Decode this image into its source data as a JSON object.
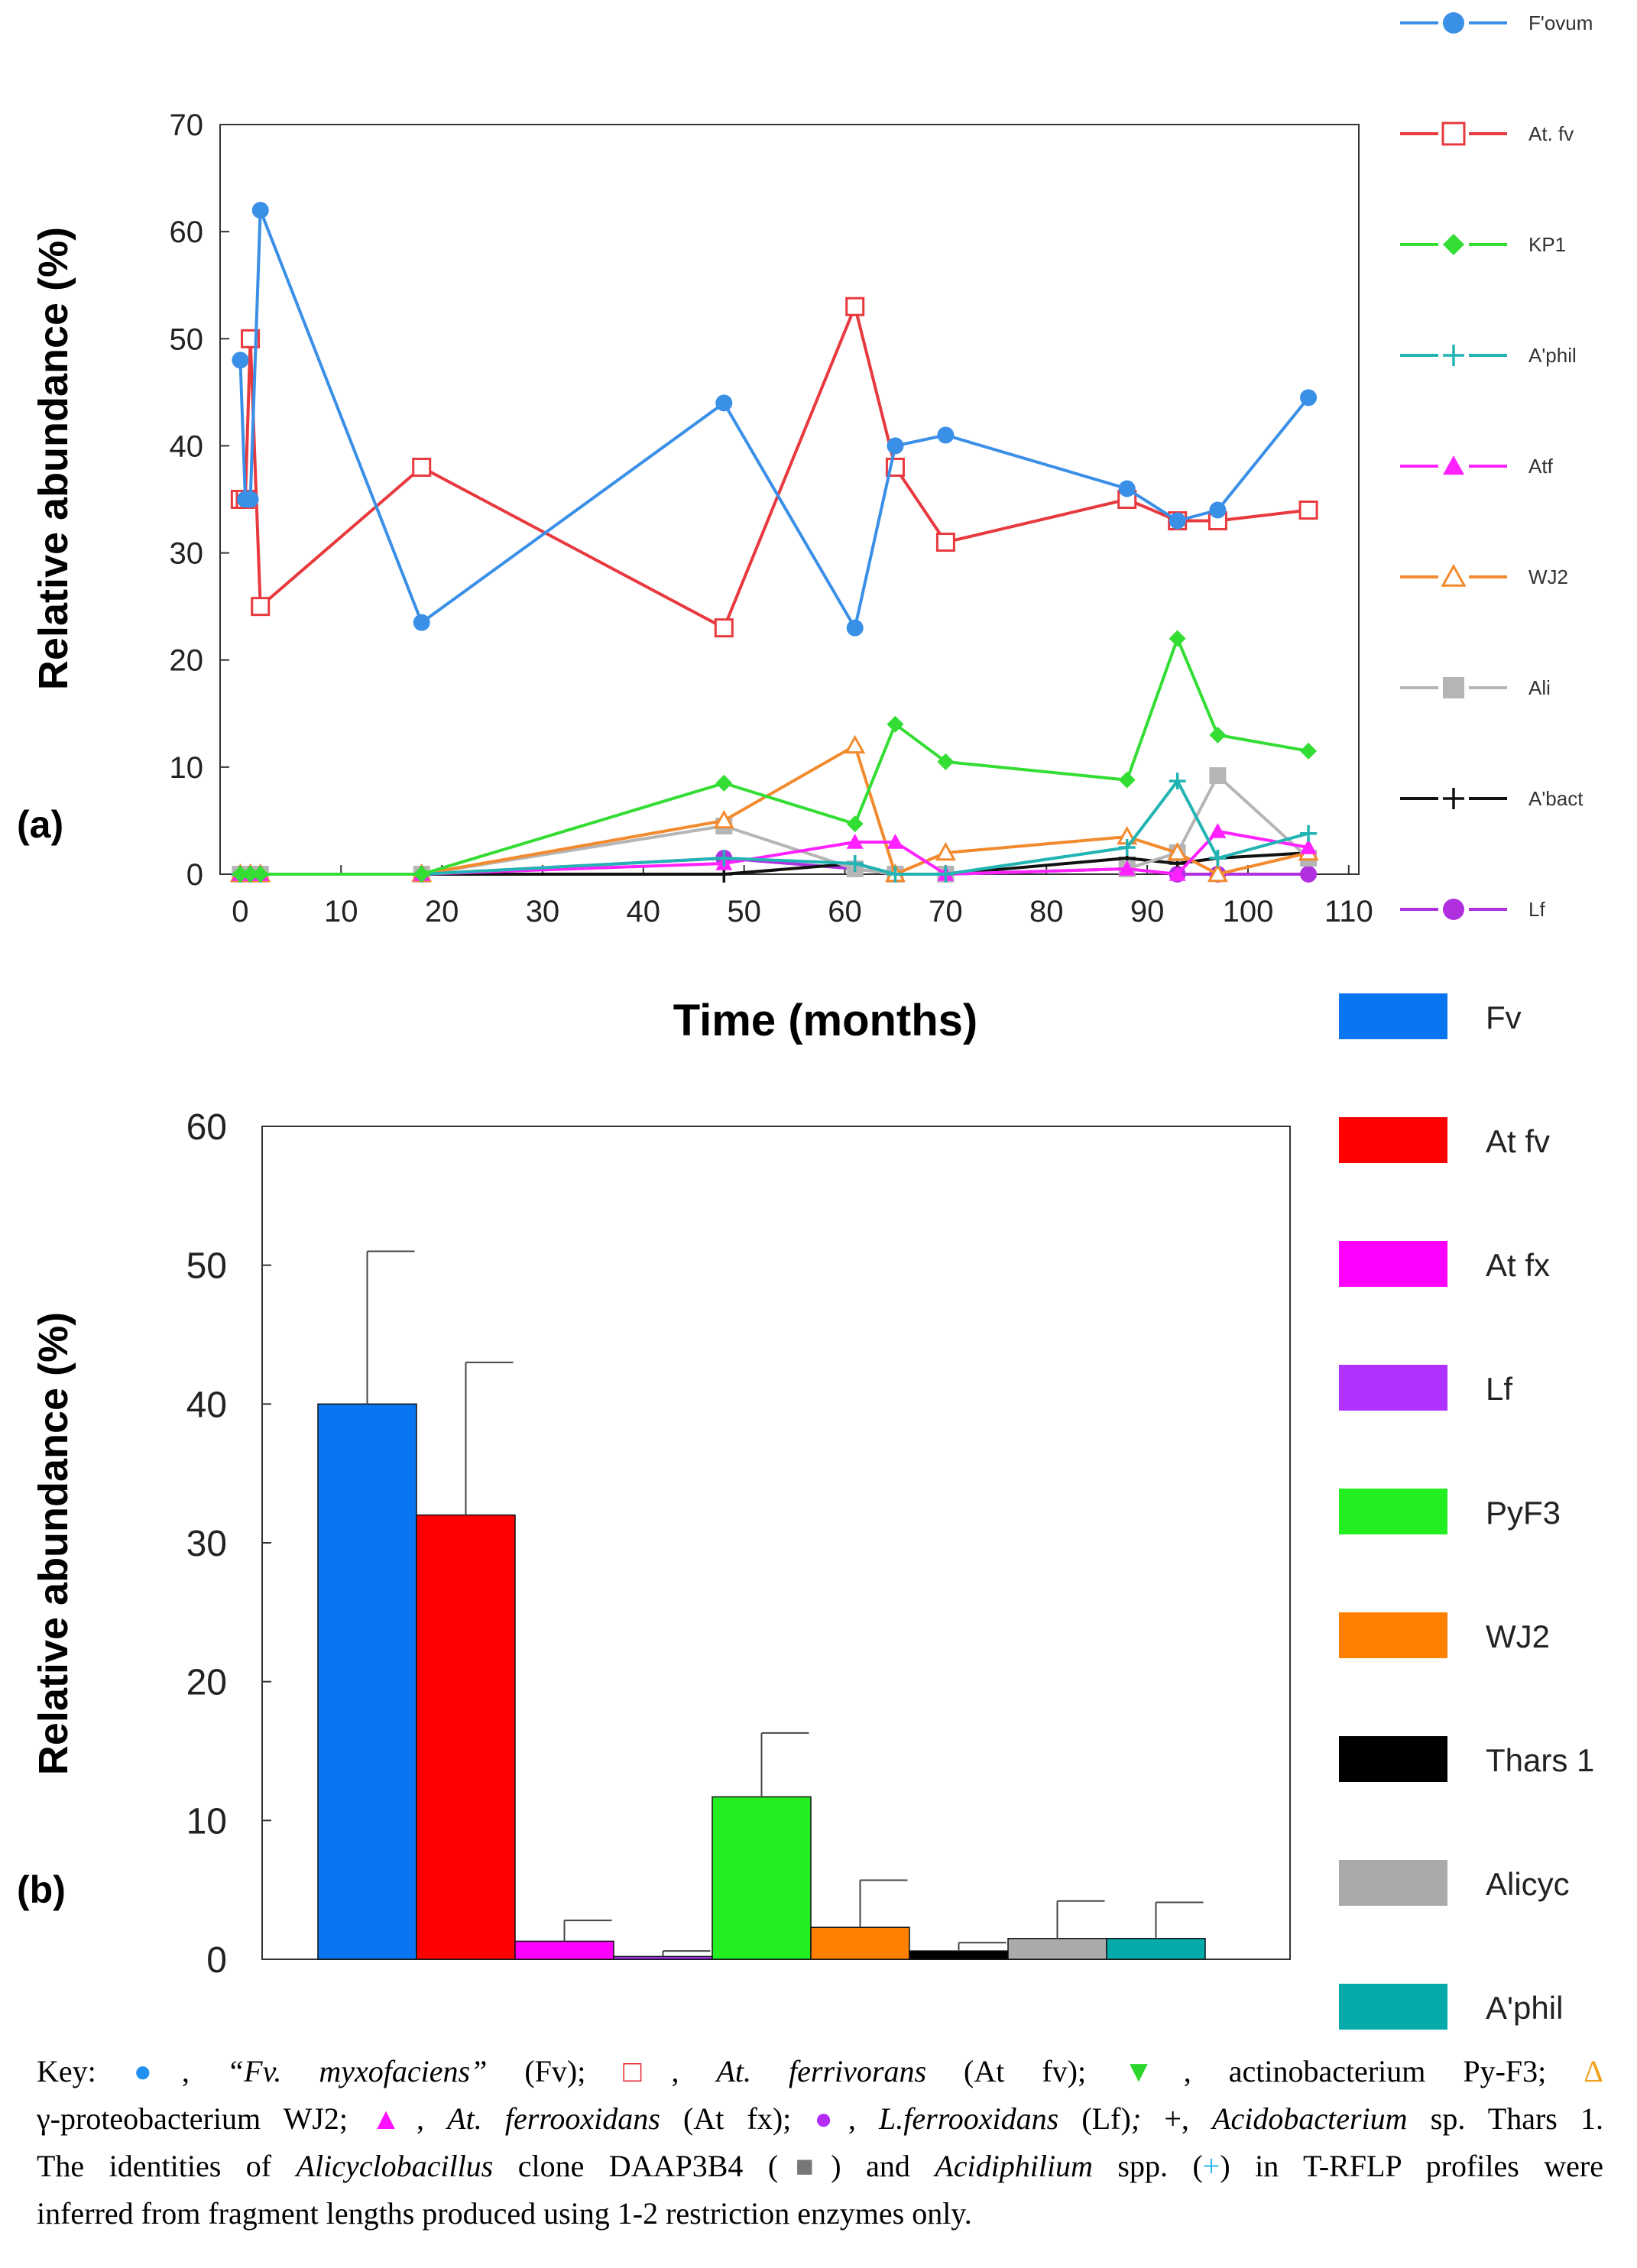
{
  "chart_data": [
    {
      "panel_label": "(a)",
      "type": "line",
      "xlabel": "Time (months)",
      "ylabel": "Relative abundance (%)",
      "xlim": [
        -2,
        111
      ],
      "ylim": [
        0,
        70
      ],
      "xticks": [
        0,
        10,
        20,
        30,
        40,
        50,
        60,
        70,
        80,
        90,
        100,
        110
      ],
      "yticks": [
        0,
        10,
        20,
        30,
        40,
        50,
        60,
        70
      ],
      "grid": false,
      "legend_position": "right",
      "series": [
        {
          "name": "F'ovum",
          "color": "#3a8fe6",
          "marker": "circle-filled",
          "points": [
            [
              0,
              48
            ],
            [
              0.5,
              35
            ],
            [
              1,
              35
            ],
            [
              2,
              62
            ],
            [
              18,
              23.5
            ],
            [
              48,
              44
            ],
            [
              61,
              23
            ],
            [
              65,
              40
            ],
            [
              70,
              41
            ],
            [
              88,
              36
            ],
            [
              93,
              33
            ],
            [
              97,
              34
            ],
            [
              106,
              44.5
            ]
          ]
        },
        {
          "name": "At. fv",
          "color": "#e8393e",
          "marker": "square-open",
          "points": [
            [
              0,
              35
            ],
            [
              0.5,
              35
            ],
            [
              1,
              50
            ],
            [
              2,
              25
            ],
            [
              18,
              38
            ],
            [
              48,
              23
            ],
            [
              61,
              53
            ],
            [
              65,
              38
            ],
            [
              70,
              31
            ],
            [
              88,
              35
            ],
            [
              93,
              33
            ],
            [
              97,
              33
            ],
            [
              106,
              34
            ]
          ]
        },
        {
          "name": "KP1",
          "color": "#33dd33",
          "marker": "diamond-filled",
          "points": [
            [
              0,
              0
            ],
            [
              1,
              0
            ],
            [
              2,
              0
            ],
            [
              18,
              0
            ],
            [
              48,
              8.5
            ],
            [
              61,
              4.7
            ],
            [
              65,
              14
            ],
            [
              70,
              10.5
            ],
            [
              88,
              8.8
            ],
            [
              93,
              22
            ],
            [
              97,
              13
            ],
            [
              106,
              11.5
            ]
          ]
        },
        {
          "name": "A'phil",
          "color": "#22b3b3",
          "marker": "plus",
          "points": [
            [
              0,
              0
            ],
            [
              1,
              0
            ],
            [
              2,
              0
            ],
            [
              18,
              0
            ],
            [
              48,
              1.5
            ],
            [
              61,
              1
            ],
            [
              65,
              0
            ],
            [
              70,
              0
            ],
            [
              88,
              2.5
            ],
            [
              93,
              8.7
            ],
            [
              97,
              1.5
            ],
            [
              106,
              3.8
            ]
          ]
        },
        {
          "name": "Atf",
          "color": "#ff22ff",
          "marker": "triangle-filled",
          "points": [
            [
              0,
              0
            ],
            [
              1,
              0
            ],
            [
              2,
              0
            ],
            [
              18,
              0
            ],
            [
              48,
              1
            ],
            [
              61,
              3
            ],
            [
              65,
              3
            ],
            [
              70,
              0
            ],
            [
              88,
              0.5
            ],
            [
              93,
              0
            ],
            [
              97,
              4
            ],
            [
              106,
              2.5
            ]
          ]
        },
        {
          "name": "WJ2",
          "color": "#f28a2e",
          "marker": "triangle-open",
          "points": [
            [
              0,
              0
            ],
            [
              1,
              0
            ],
            [
              2,
              0
            ],
            [
              18,
              0
            ],
            [
              48,
              5
            ],
            [
              61,
              12
            ],
            [
              65,
              0
            ],
            [
              70,
              2
            ],
            [
              88,
              3.5
            ],
            [
              93,
              2
            ],
            [
              97,
              0
            ],
            [
              106,
              2
            ]
          ]
        },
        {
          "name": "Ali",
          "color": "#b5b5b5",
          "marker": "square-filled",
          "points": [
            [
              0,
              0
            ],
            [
              1,
              0
            ],
            [
              2,
              0
            ],
            [
              18,
              0
            ],
            [
              48,
              4.5
            ],
            [
              61,
              0.5
            ],
            [
              65,
              0
            ],
            [
              70,
              0
            ],
            [
              88,
              0.5
            ],
            [
              93,
              2
            ],
            [
              97,
              9.2
            ],
            [
              106,
              1.5
            ]
          ]
        },
        {
          "name": "A'bact",
          "color": "#111111",
          "marker": "plus",
          "points": [
            [
              0,
              0
            ],
            [
              1,
              0
            ],
            [
              2,
              0
            ],
            [
              18,
              0
            ],
            [
              48,
              0
            ],
            [
              61,
              1
            ],
            [
              65,
              0
            ],
            [
              70,
              0
            ],
            [
              88,
              1.5
            ],
            [
              93,
              1
            ],
            [
              97,
              1.5
            ],
            [
              106,
              2
            ]
          ]
        },
        {
          "name": "Lf",
          "color": "#b030e0",
          "marker": "circle-filled",
          "points": [
            [
              0,
              0
            ],
            [
              1,
              0
            ],
            [
              2,
              0
            ],
            [
              18,
              0
            ],
            [
              48,
              1.5
            ],
            [
              61,
              0.5
            ],
            [
              65,
              0
            ],
            [
              70,
              0
            ],
            [
              88,
              0.5
            ],
            [
              93,
              0
            ],
            [
              97,
              0
            ],
            [
              106,
              0
            ]
          ]
        }
      ]
    },
    {
      "panel_label": "(b)",
      "type": "bar",
      "xlabel": "",
      "ylabel": "Relative abundance (%)",
      "ylim": [
        0,
        60
      ],
      "yticks": [
        0,
        10,
        20,
        30,
        40,
        50,
        60
      ],
      "grid": false,
      "legend_position": "right",
      "categories": [
        "Fv",
        "At fv",
        "At fx",
        "Lf",
        "PyF3",
        "WJ2",
        "Thars 1",
        "Alicyc",
        "A'phil"
      ],
      "values": [
        40,
        32,
        1.3,
        0.2,
        11.7,
        2.3,
        0.6,
        1.5,
        1.5
      ],
      "errors": [
        11,
        11,
        1.5,
        0.4,
        4.6,
        3.4,
        0.6,
        2.7,
        2.6
      ],
      "colors": [
        "#0a75f0",
        "#ff0000",
        "#ff00ff",
        "#b032ff",
        "#22ee22",
        "#ff7f00",
        "#000000",
        "#aaaaaa",
        "#05aaaa"
      ]
    }
  ],
  "caption": {
    "l1": {
      "key": "Key:",
      "fv_name": "“Fv. myxofaciens”",
      "fv_abbr": "(Fv);",
      "atfv_name": "At. ferrivorans",
      "atfv_abbr": "(At fv);",
      "act": "actinobacterium Py-F3;"
    },
    "l2": {
      "gp": "γ-proteobacterium WJ2;",
      "atfx_name": "At. ferrooxidans",
      "atfx_abbr": "(At fx);",
      "lf_name": "L.ferrooxidans",
      "lf_abbr": "(Lf)",
      "acido_pre": "+,",
      "acido_name": "Acidobacterium",
      "acido_post": "sp. Thars 1."
    },
    "l3": {
      "a": "The identities of",
      "alicyc": "Alicyclobacillus",
      "b": "clone DAAP3B4 (",
      "c": ") and",
      "acidiphilium": "Acidiphilium",
      "d": "spp. (",
      "plus": "+",
      "e": ") in T-RFLP profiles were"
    },
    "l4": "inferred from fragment lengths produced using 1-2 restriction enzymes only."
  }
}
